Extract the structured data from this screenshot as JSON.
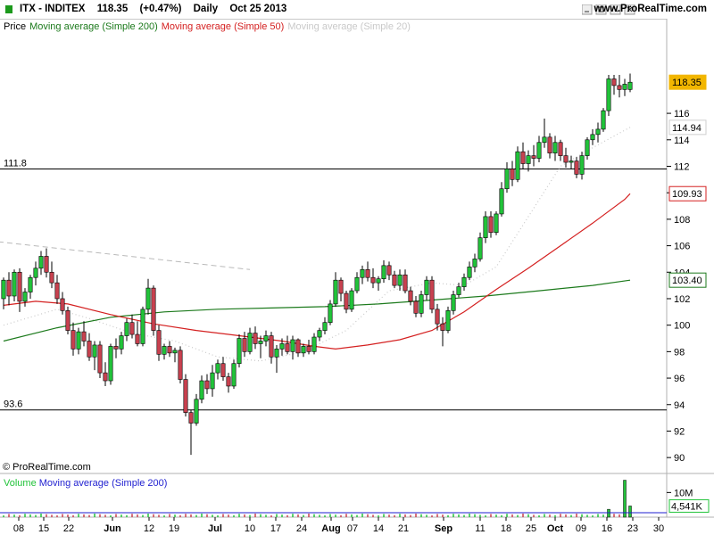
{
  "header": {
    "ticker": "ITX - INDITEX",
    "price": "118.35",
    "change": "(+0.47%)",
    "period": "Daily",
    "date": "Oct 25 2013",
    "brand": "www.ProRealTime.com"
  },
  "legend": {
    "price": "Price",
    "ma200": "Moving average (Simple 200)",
    "ma50": "Moving average (Simple 50)",
    "ma20": "Moving average (Simple 20)"
  },
  "copyright": "© ProRealTime.com",
  "volume_legend": {
    "volume": "Volume",
    "ma200": "Moving average (Simple 200)"
  },
  "colors": {
    "up": "#22c33a",
    "down": "#c8414f",
    "ma200": "#1c7a1c",
    "ma50": "#d42020",
    "ma20": "#c9c9c9",
    "volume_ma": "#1f1fd0",
    "price_tag": "#f2b600"
  },
  "chart_data": {
    "type": "candlestick",
    "ylim": [
      89,
      122
    ],
    "y_ticks": [
      90,
      92,
      94,
      96,
      98,
      100,
      102,
      104,
      106,
      108,
      110,
      112,
      114,
      116
    ],
    "x_labels": [
      "08",
      "15",
      "22",
      "Jun",
      "12",
      "19",
      "Jul",
      "10",
      "17",
      "24",
      "Aug",
      "07",
      "14",
      "21",
      "Sep",
      "11",
      "18",
      "25",
      "Oct",
      "09",
      "16",
      "23",
      "30"
    ],
    "horizontal_lines": [
      {
        "label": "111.8",
        "value": 111.8
      },
      {
        "label": "93.6",
        "value": 93.6
      }
    ],
    "tags": [
      {
        "label": "118.35",
        "value": 118.35,
        "kind": "price"
      },
      {
        "label": "114.94",
        "value": 114.94,
        "kind": "ma20"
      },
      {
        "label": "109.93",
        "value": 109.93,
        "kind": "ma50"
      },
      {
        "label": "103.40",
        "value": 103.4,
        "kind": "ma200"
      }
    ],
    "candles": [
      [
        102,
        103.6,
        101.2,
        103.4
      ],
      [
        103.4,
        104,
        101.5,
        102.2
      ],
      [
        102.2,
        104.2,
        101.8,
        104
      ],
      [
        104,
        104.3,
        101,
        101.8
      ],
      [
        101.8,
        102.8,
        101.4,
        102.5
      ],
      [
        102.5,
        103.8,
        102,
        103.6
      ],
      [
        103.6,
        104.8,
        103,
        104.3
      ],
      [
        104.3,
        105.6,
        103.8,
        105.2
      ],
      [
        105.2,
        105.8,
        103.6,
        104
      ],
      [
        104,
        104.8,
        102.8,
        103.2
      ],
      [
        103.2,
        103.8,
        101.6,
        102
      ],
      [
        102,
        102.5,
        100.8,
        101.1
      ],
      [
        101.1,
        101.4,
        99.3,
        99.6
      ],
      [
        99.6,
        100.2,
        97.7,
        98.2
      ],
      [
        98.2,
        99.8,
        97.8,
        99.5
      ],
      [
        99.5,
        100.3,
        98.4,
        98.8
      ],
      [
        98.8,
        99.4,
        97.3,
        97.6
      ],
      [
        97.6,
        98.8,
        96.6,
        98.5
      ],
      [
        98.5,
        98.8,
        96,
        96.4
      ],
      [
        96.4,
        97.2,
        95.4,
        95.8
      ],
      [
        95.8,
        98.6,
        95.5,
        98.4
      ],
      [
        98.4,
        99,
        97.5,
        98.2
      ],
      [
        98.2,
        99.5,
        97.8,
        99.2
      ],
      [
        99.2,
        100.5,
        98.8,
        100.2
      ],
      [
        100.2,
        100.8,
        99,
        99.3
      ],
      [
        99.3,
        100.3,
        98.4,
        98.6
      ],
      [
        98.6,
        101.4,
        98.4,
        101.2
      ],
      [
        101.2,
        103.5,
        100.8,
        102.8
      ],
      [
        102.8,
        103,
        99.2,
        99.6
      ],
      [
        99.6,
        100,
        97.3,
        97.8
      ],
      [
        97.8,
        98.6,
        97.4,
        98.4
      ],
      [
        98.4,
        98.8,
        97.6,
        97.9
      ],
      [
        97.9,
        98.3,
        97.2,
        98.1
      ],
      [
        98.1,
        98.4,
        95.6,
        95.9
      ],
      [
        95.9,
        96.3,
        93.1,
        93.4
      ],
      [
        93.4,
        93.6,
        90.2,
        92.6
      ],
      [
        92.6,
        94.8,
        92.4,
        94.4
      ],
      [
        94.4,
        96.2,
        94.1,
        95.8
      ],
      [
        95.8,
        96.3,
        94.8,
        95.2
      ],
      [
        95.2,
        97,
        94.6,
        96.4
      ],
      [
        96.4,
        97.4,
        95.9,
        97.1
      ],
      [
        97.1,
        97.6,
        95.8,
        96.1
      ],
      [
        96.1,
        96.4,
        94.9,
        95.4
      ],
      [
        95.4,
        97.4,
        95.2,
        97.1
      ],
      [
        97.1,
        99.3,
        96.8,
        99
      ],
      [
        99,
        99.5,
        97.6,
        98
      ],
      [
        98,
        99.8,
        97.8,
        99.4
      ],
      [
        99.4,
        99.9,
        98.2,
        98.6
      ],
      [
        98.6,
        99.2,
        97.5,
        98.8
      ],
      [
        98.8,
        99.6,
        98.4,
        99.2
      ],
      [
        99.2,
        99.5,
        97.1,
        97.6
      ],
      [
        97.6,
        98.5,
        96.4,
        98.2
      ],
      [
        98.2,
        99,
        97.7,
        98.6
      ],
      [
        98.6,
        99.2,
        97.8,
        98
      ],
      [
        98,
        99.2,
        97.4,
        98.9
      ],
      [
        98.9,
        99,
        97.6,
        97.9
      ],
      [
        97.9,
        98.6,
        97.6,
        98.4
      ],
      [
        98.4,
        98.9,
        97.8,
        98
      ],
      [
        98,
        99.4,
        97.8,
        99.1
      ],
      [
        99.1,
        99.8,
        98.8,
        99.6
      ],
      [
        99.6,
        100.6,
        99.3,
        100.2
      ],
      [
        100.2,
        101.9,
        100,
        101.6
      ],
      [
        101.6,
        104,
        101.4,
        103.4
      ],
      [
        103.4,
        103.6,
        101.8,
        102.4
      ],
      [
        102.4,
        102.6,
        100.9,
        101.2
      ],
      [
        101.2,
        102.8,
        101,
        102.6
      ],
      [
        102.6,
        104,
        102.4,
        103.6
      ],
      [
        103.6,
        104.5,
        103.1,
        104.2
      ],
      [
        104.2,
        104.8,
        103.3,
        103.6
      ],
      [
        103.6,
        104.3,
        102.8,
        103.2
      ],
      [
        103.2,
        103.7,
        102.6,
        103.5
      ],
      [
        103.5,
        104.9,
        103.2,
        104.5
      ],
      [
        104.5,
        104.8,
        103.4,
        103.8
      ],
      [
        103.8,
        104.1,
        102.8,
        103
      ],
      [
        103,
        104.2,
        102.6,
        103.8
      ],
      [
        103.8,
        104.2,
        102.4,
        102.6
      ],
      [
        102.6,
        102.9,
        101.5,
        101.8
      ],
      [
        101.8,
        102.2,
        100.6,
        100.9
      ],
      [
        100.9,
        102.6,
        100.6,
        102.3
      ],
      [
        102.3,
        103.7,
        101.9,
        103.4
      ],
      [
        103.4,
        103.7,
        100.9,
        101.2
      ],
      [
        101.2,
        101.6,
        99.6,
        100.1
      ],
      [
        100.1,
        100.6,
        98.4,
        99.6
      ],
      [
        99.6,
        101.4,
        99.4,
        101.1
      ],
      [
        101.1,
        102.6,
        100.8,
        102.3
      ],
      [
        102.3,
        103.2,
        102.1,
        102.9
      ],
      [
        102.9,
        103.9,
        102.6,
        103.6
      ],
      [
        103.6,
        104.8,
        103.4,
        104.4
      ],
      [
        104.4,
        105.4,
        104,
        105
      ],
      [
        105,
        107,
        104.8,
        106.6
      ],
      [
        106.6,
        108.6,
        106.2,
        108.2
      ],
      [
        108.2,
        108.6,
        106.6,
        107
      ],
      [
        107,
        108.6,
        106.8,
        108.4
      ],
      [
        108.4,
        110.8,
        108.2,
        110.3
      ],
      [
        110.3,
        112.3,
        110,
        111.8
      ],
      [
        111.8,
        112.4,
        110.5,
        111
      ],
      [
        111,
        113.5,
        110.8,
        113.1
      ],
      [
        113.1,
        113.8,
        111.8,
        112.2
      ],
      [
        112.2,
        113.2,
        111.6,
        112.8
      ],
      [
        112.8,
        113.6,
        112,
        112.6
      ],
      [
        112.6,
        114.3,
        112.3,
        113.8
      ],
      [
        113.8,
        115.6,
        113.4,
        114.2
      ],
      [
        114.2,
        114.5,
        112.6,
        113
      ],
      [
        113,
        114.3,
        112.4,
        113.8
      ],
      [
        113.8,
        114,
        112.4,
        112.8
      ],
      [
        112.8,
        113.4,
        111.9,
        112.3
      ],
      [
        112.3,
        112.8,
        111.8,
        112.4
      ],
      [
        112.4,
        112.7,
        111.1,
        111.4
      ],
      [
        111.4,
        113.1,
        111,
        112.8
      ],
      [
        112.8,
        114.2,
        112.5,
        114
      ],
      [
        114,
        114.8,
        113.6,
        114.4
      ],
      [
        114.4,
        115.3,
        113.8,
        114.8
      ],
      [
        114.8,
        116.4,
        114.6,
        116.2
      ],
      [
        116.2,
        118.9,
        115.8,
        118.6
      ],
      [
        118.6,
        118.9,
        117.4,
        118.1
      ],
      [
        118.1,
        118.9,
        117.2,
        117.8
      ],
      [
        117.8,
        118.6,
        117.3,
        118.2
      ],
      [
        117.8,
        119,
        117.6,
        118.35
      ]
    ],
    "ma200": [
      [
        0,
        98.8
      ],
      [
        10,
        99.8
      ],
      [
        20,
        100.6
      ],
      [
        30,
        101
      ],
      [
        40,
        101.2
      ],
      [
        50,
        101.3
      ],
      [
        60,
        101.4
      ],
      [
        70,
        101.6
      ],
      [
        80,
        101.9
      ],
      [
        90,
        102.2
      ],
      [
        100,
        102.6
      ],
      [
        110,
        103
      ],
      [
        117,
        103.4
      ]
    ],
    "ma50": [
      [
        0,
        101.5
      ],
      [
        6,
        101.8
      ],
      [
        12,
        101.6
      ],
      [
        20,
        100.8
      ],
      [
        28,
        100.1
      ],
      [
        36,
        99.6
      ],
      [
        44,
        99.2
      ],
      [
        52,
        98.8
      ],
      [
        58,
        98.4
      ],
      [
        62,
        98.2
      ],
      [
        68,
        98.5
      ],
      [
        74,
        98.9
      ],
      [
        80,
        99.6
      ],
      [
        86,
        101
      ],
      [
        92,
        102.7
      ],
      [
        98,
        104.3
      ],
      [
        104,
        106
      ],
      [
        110,
        107.7
      ],
      [
        116,
        109.5
      ],
      [
        117,
        109.93
      ]
    ],
    "ma20": [
      [
        0,
        100
      ],
      [
        10,
        101.2
      ],
      [
        16,
        100.5
      ],
      [
        24,
        99.4
      ],
      [
        32,
        98.8
      ],
      [
        40,
        97.6
      ],
      [
        48,
        97.3
      ],
      [
        56,
        98
      ],
      [
        64,
        99.6
      ],
      [
        72,
        102.6
      ],
      [
        80,
        103.2
      ],
      [
        86,
        103
      ],
      [
        92,
        104.4
      ],
      [
        98,
        108.2
      ],
      [
        104,
        112
      ],
      [
        110,
        113.4
      ],
      [
        117,
        114.94
      ]
    ],
    "dashed_trendline": {
      "from": [
        -1,
        106.3
      ],
      "to": [
        46,
        104.2
      ]
    },
    "volume": {
      "ticks": [
        "10M",
        "4,541K"
      ],
      "tick_values": [
        10000000,
        4541000
      ],
      "ylim": [
        0,
        17000000
      ],
      "ma200": 1800000,
      "spikes": [
        [
          113,
          3200000
        ],
        [
          116,
          15000000
        ],
        [
          117,
          4541000
        ]
      ],
      "baseline": 1200000
    }
  }
}
